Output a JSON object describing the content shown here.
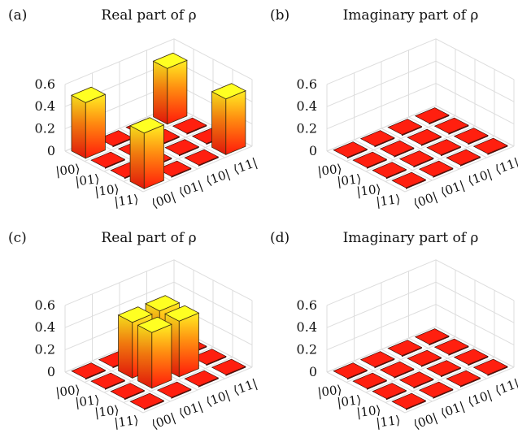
{
  "chart_data": [
    {
      "type": "bar3d",
      "panel_label": "(a)",
      "title": "Real part of ρ",
      "row_labels": [
        "|00⟩",
        "|01⟩",
        "|10⟩",
        "|11⟩"
      ],
      "col_labels": [
        "⟨00|",
        "⟨01|",
        "⟨10|",
        "⟨11|"
      ],
      "zlim": [
        0,
        0.6
      ],
      "zticks": [
        "0",
        "0.2",
        "0.4",
        "0.6"
      ],
      "grid": true,
      "values": [
        [
          0.5,
          0,
          0,
          0.5
        ],
        [
          0,
          0,
          0,
          0
        ],
        [
          0,
          0,
          0,
          0
        ],
        [
          0.5,
          0,
          0,
          0.5
        ]
      ]
    },
    {
      "type": "bar3d",
      "panel_label": "(b)",
      "title": "Imaginary part of ρ",
      "row_labels": [
        "|00⟩",
        "|01⟩",
        "|10⟩",
        "|11⟩"
      ],
      "col_labels": [
        "⟨00|",
        "⟨01|",
        "⟨10|",
        "⟨11|"
      ],
      "zlim": [
        0,
        0.6
      ],
      "zticks": [
        "0",
        "0.2",
        "0.4",
        "0.6"
      ],
      "grid": true,
      "values": [
        [
          0,
          0,
          0,
          0
        ],
        [
          0,
          0,
          0,
          0
        ],
        [
          0,
          0,
          0,
          0
        ],
        [
          0,
          0,
          0,
          0
        ]
      ]
    },
    {
      "type": "bar3d",
      "panel_label": "(c)",
      "title": "Real part of ρ",
      "row_labels": [
        "|00⟩",
        "|01⟩",
        "|10⟩",
        "|11⟩"
      ],
      "col_labels": [
        "⟨00|",
        "⟨01|",
        "⟨10|",
        "⟨11|"
      ],
      "zlim": [
        0,
        0.6
      ],
      "zticks": [
        "0",
        "0.2",
        "0.4",
        "0.6"
      ],
      "grid": true,
      "values": [
        [
          0,
          0,
          0,
          0
        ],
        [
          0,
          0.5,
          0.5,
          0
        ],
        [
          0,
          0.5,
          0.5,
          0
        ],
        [
          0,
          0,
          0,
          0
        ]
      ]
    },
    {
      "type": "bar3d",
      "panel_label": "(d)",
      "title": "Imaginary part of ρ",
      "row_labels": [
        "|00⟩",
        "|01⟩",
        "|10⟩",
        "|11⟩"
      ],
      "col_labels": [
        "⟨00|",
        "⟨01|",
        "⟨10|",
        "⟨11|"
      ],
      "zlim": [
        0,
        0.6
      ],
      "zticks": [
        "0",
        "0.2",
        "0.4",
        "0.6"
      ],
      "grid": true,
      "values": [
        [
          0,
          0,
          0,
          0
        ],
        [
          0,
          0,
          0,
          0
        ],
        [
          0,
          0,
          0,
          0
        ],
        [
          0,
          0,
          0,
          0
        ]
      ]
    }
  ],
  "colors": {
    "bar_top": "#ffff22",
    "bar_bottom": "#ff1a0a",
    "tile": "#ff1f0f",
    "tile_edge": "#2a0d08",
    "grid": "#dddddd",
    "bar_edge": "#3a2a10"
  }
}
